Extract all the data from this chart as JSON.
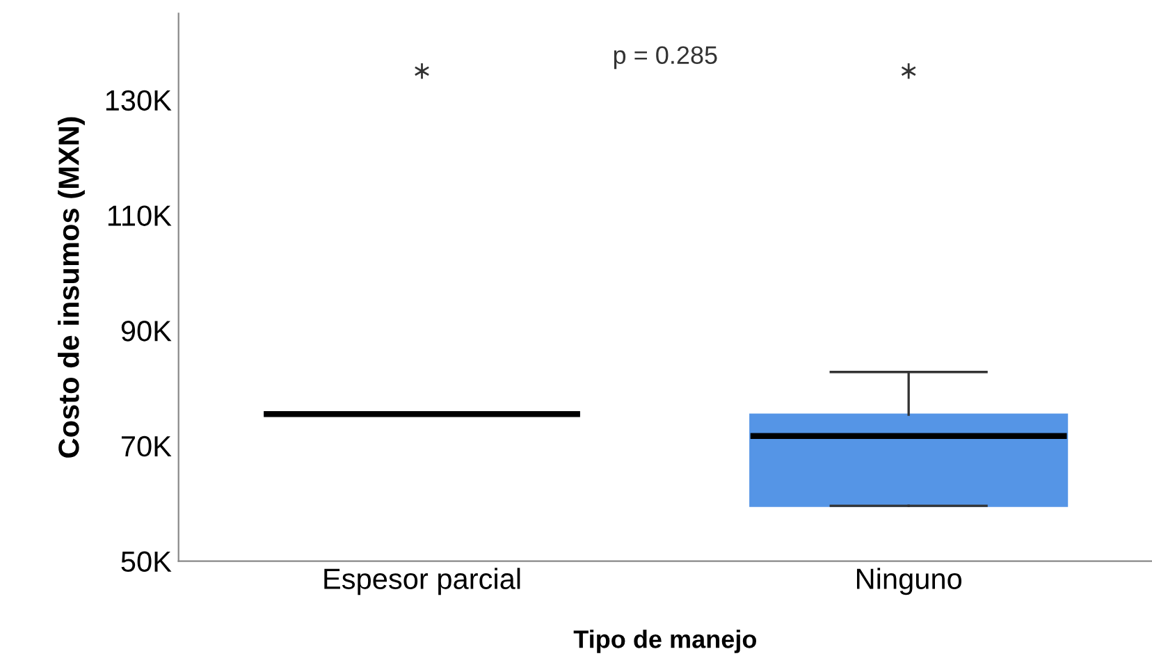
{
  "chart_data": {
    "type": "box",
    "xlabel": "Tipo de manejo",
    "ylabel": "Costo de insumos (MXN)",
    "categories": [
      "Espesor parcial",
      "Ninguno"
    ],
    "series": [
      {
        "color": "#5595e6",
        "boxes": [
          {
            "low": 75500,
            "q1": 75500,
            "median": 75500,
            "q3": 75500,
            "high": 75500,
            "outliers": [
              135000
            ]
          },
          {
            "low": 59600,
            "q1": 59600,
            "median": 71700,
            "q3": 75400,
            "high": 82800,
            "outliers": [
              135000
            ]
          }
        ]
      }
    ],
    "ylim": [
      50000,
      145000
    ],
    "yticks": [
      {
        "value": 50000,
        "label": "50K"
      },
      {
        "value": 70000,
        "label": "70K"
      },
      {
        "value": 90000,
        "label": "90K"
      },
      {
        "value": 110000,
        "label": "110K"
      },
      {
        "value": 130000,
        "label": "130K"
      }
    ],
    "annotations": [
      "p = 0.285"
    ],
    "grid": false
  }
}
